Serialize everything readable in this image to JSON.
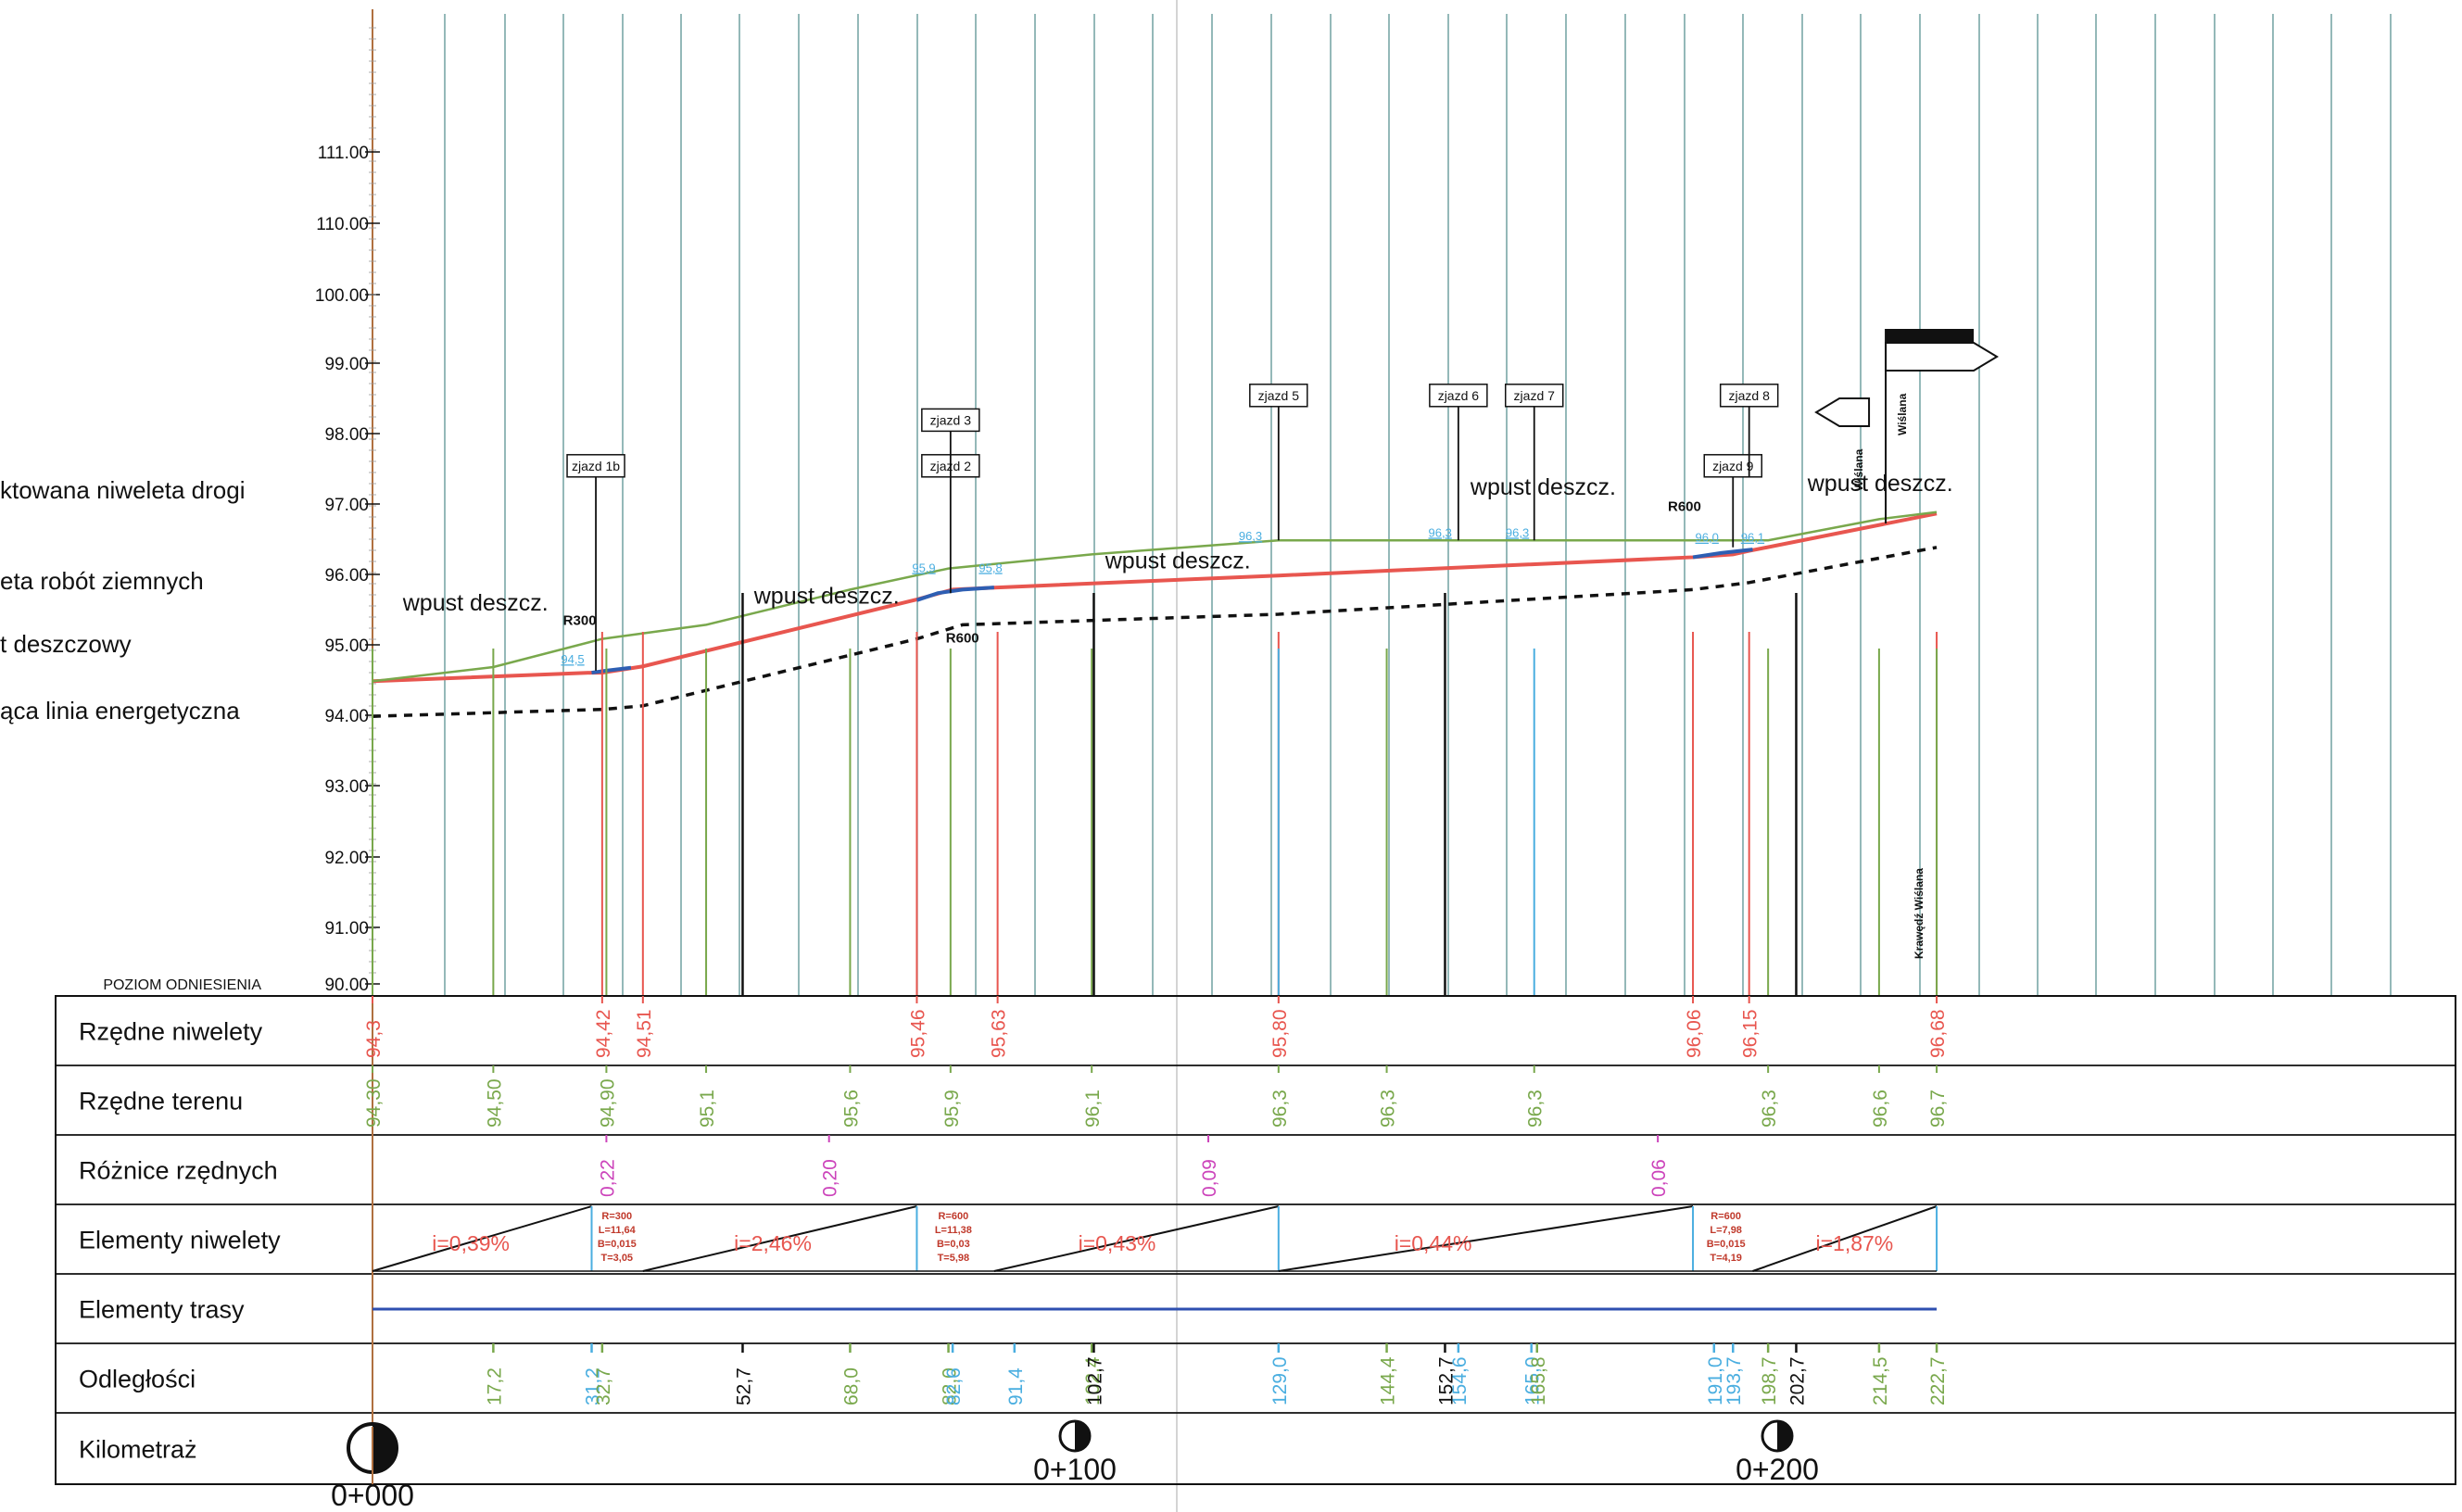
{
  "legend": [
    {
      "text": "ktowana niweleta drogi",
      "y": 530
    },
    {
      "text": "eta robót ziemnych",
      "y": 628
    },
    {
      "text": "t deszczowy",
      "y": 696
    },
    {
      "text": "ąca linia energetyczna",
      "y": 768
    }
  ],
  "reference_level": "POZIOM  ODNIESIENIA",
  "row_labels": [
    "Rzędne niwelety",
    "Rzędne terenu",
    "Różnice rzędnych",
    "Elementy niwelety",
    "Elementy trasy",
    "Odległości",
    "Kilometraż"
  ],
  "y_axis_ticks": [
    "111.00",
    "110.00",
    "100.00",
    "99.00",
    "98.00",
    "97.00",
    "96.00",
    "95.00",
    "94.00",
    "93.00",
    "92.00",
    "91.00",
    "90.00"
  ],
  "niveleta_values": [
    {
      "km": 0,
      "label": "94,3"
    },
    {
      "km": 32.7,
      "label": "94,42"
    },
    {
      "km": 38.5,
      "label": "94,51"
    },
    {
      "km": 77.5,
      "label": "95,46"
    },
    {
      "km": 89,
      "label": "95,63"
    },
    {
      "km": 129,
      "label": "95,80"
    },
    {
      "km": 188,
      "label": "96,06"
    },
    {
      "km": 196,
      "label": "96,15"
    },
    {
      "km": 222.7,
      "label": "96,68"
    }
  ],
  "teren_values": [
    {
      "km": 0,
      "label": "94,30",
      "color": "green"
    },
    {
      "km": 17.2,
      "label": "94,50",
      "color": "green"
    },
    {
      "km": 33.3,
      "label": "94,90",
      "color": "green"
    },
    {
      "km": 47.5,
      "label": "95,1",
      "color": "green"
    },
    {
      "km": 68,
      "label": "95,6",
      "color": "green"
    },
    {
      "km": 82.3,
      "label": "95,9",
      "color": "green"
    },
    {
      "km": 102.4,
      "label": "96,1",
      "color": "green"
    },
    {
      "km": 129,
      "label": "96,3",
      "color": "blue"
    },
    {
      "km": 144.4,
      "label": "96,3",
      "color": "green"
    },
    {
      "km": 165.4,
      "label": "96,3",
      "color": "blue"
    },
    {
      "km": 198.7,
      "label": "96,3",
      "color": "green"
    },
    {
      "km": 214.5,
      "label": "96,6",
      "color": "green"
    },
    {
      "km": 222.7,
      "label": "96,7",
      "color": "green"
    }
  ],
  "roznice_values": [
    {
      "km": 33.3,
      "label": "0,22"
    },
    {
      "km": 65,
      "label": "0,20"
    },
    {
      "km": 119,
      "label": "0,09"
    },
    {
      "km": 183,
      "label": "0,06"
    }
  ],
  "elementy_niwelety": {
    "slopes": [
      {
        "km": 14,
        "label": "i=0,39%"
      },
      {
        "km": 57,
        "label": "i=2,46%"
      },
      {
        "km": 106,
        "label": "i=0,43%"
      },
      {
        "km": 151,
        "label": "i=0,44%"
      },
      {
        "km": 211,
        "label": "i=1,87%"
      }
    ],
    "curves": [
      {
        "km": 34.8,
        "lines": [
          "R=300",
          "L=11,64",
          "B=0,015",
          "T=3,05"
        ]
      },
      {
        "km": 82.7,
        "lines": [
          "R=600",
          "L=11,38",
          "B=0,03",
          "T=5,98"
        ]
      },
      {
        "km": 192.7,
        "lines": [
          "R=600",
          "L=7,98",
          "B=0,015",
          "T=4,19"
        ]
      }
    ]
  },
  "odleglosci": [
    {
      "km": 17.2,
      "label": "17,2",
      "color": "green"
    },
    {
      "km": 31.2,
      "label": "31,2",
      "color": "blue"
    },
    {
      "km": 32.7,
      "label": "32,7",
      "color": "green"
    },
    {
      "km": 52.7,
      "label": "52,7",
      "color": "black"
    },
    {
      "km": 68.0,
      "label": "68,0",
      "color": "green"
    },
    {
      "km": 82.0,
      "label": "82,0",
      "color": "green"
    },
    {
      "km": 82.6,
      "label": "82,6",
      "color": "blue"
    },
    {
      "km": 91.4,
      "label": "91,4",
      "color": "blue"
    },
    {
      "km": 102.4,
      "label": "102,4",
      "color": "green"
    },
    {
      "km": 102.7,
      "label": "102,7",
      "color": "black"
    },
    {
      "km": 129.0,
      "label": "129,0",
      "color": "blue"
    },
    {
      "km": 144.4,
      "label": "144,4",
      "color": "green"
    },
    {
      "km": 152.7,
      "label": "152,7",
      "color": "black"
    },
    {
      "km": 154.6,
      "label": "154,6",
      "color": "blue"
    },
    {
      "km": 165.0,
      "label": "165,0",
      "color": "blue"
    },
    {
      "km": 165.8,
      "label": "165,8",
      "color": "green"
    },
    {
      "km": 191.0,
      "label": "191,0",
      "color": "blue"
    },
    {
      "km": 193.7,
      "label": "193,7",
      "color": "blue"
    },
    {
      "km": 198.7,
      "label": "198,7",
      "color": "green"
    },
    {
      "km": 202.7,
      "label": "202,7",
      "color": "black"
    },
    {
      "km": 214.5,
      "label": "214,5",
      "color": "green"
    },
    {
      "km": 222.7,
      "label": "222,7",
      "color": "green"
    }
  ],
  "kilometraz": [
    {
      "km": 0,
      "label": "0+000"
    },
    {
      "km": 100,
      "label": "0+100"
    },
    {
      "km": 200,
      "label": "0+200"
    }
  ],
  "annotations": {
    "wpust": [
      {
        "km": 3,
        "elev": 95.3,
        "text": "wpust  deszcz."
      },
      {
        "km": 53,
        "elev": 95.4,
        "text": "wpust  deszcz."
      },
      {
        "km": 103,
        "elev": 95.9,
        "text": "wpust  deszcz."
      },
      {
        "km": 155,
        "elev": 96.95,
        "text": "wpust  deszcz."
      },
      {
        "km": 203,
        "elev": 97.0,
        "text": "wpust  deszcz."
      }
    ],
    "zjazdy": [
      {
        "km": 31.8,
        "text": "zjazd 1b",
        "box_elev": 97.2,
        "line_to": 94.45
      },
      {
        "km": 82.3,
        "text": "zjazd 2",
        "box_elev": 97.2,
        "line_to": 95.55
      },
      {
        "km": 82.3,
        "text": "zjazd 3",
        "box_elev": 97.85,
        "line_to": 97.2
      },
      {
        "km": 129,
        "text": "zjazd 5",
        "box_elev": 98.2,
        "line_to": 96.3
      },
      {
        "km": 154.6,
        "text": "zjazd 6",
        "box_elev": 98.2,
        "line_to": 96.3
      },
      {
        "km": 165.4,
        "text": "zjazd 7",
        "box_elev": 98.2,
        "line_to": 96.3
      },
      {
        "km": 193.7,
        "text": "zjazd 9",
        "box_elev": 97.2,
        "line_to": 96.2
      },
      {
        "km": 196,
        "text": "zjazd 8",
        "box_elev": 98.2,
        "line_to": 97.2
      }
    ],
    "radii": [
      {
        "km": 29.5,
        "elev": 95.1,
        "text": "R300"
      },
      {
        "km": 84,
        "elev": 94.85,
        "text": "R600"
      },
      {
        "km": 186.8,
        "elev": 96.72,
        "text": "R600"
      }
    ],
    "level_tags": [
      {
        "km": 28.5,
        "elev": 94.55,
        "text": "94,5"
      },
      {
        "km": 78.5,
        "elev": 95.85,
        "text": "95,9"
      },
      {
        "km": 88,
        "elev": 95.85,
        "text": "95,8"
      },
      {
        "km": 125,
        "elev": 96.3,
        "text": "96,3"
      },
      {
        "km": 152,
        "elev": 96.35,
        "text": "96,3"
      },
      {
        "km": 163,
        "elev": 96.35,
        "text": "96,3"
      },
      {
        "km": 190,
        "elev": 96.28,
        "text": "96,0"
      },
      {
        "km": 196.5,
        "elev": 96.28,
        "text": "96,1"
      }
    ],
    "signs": [
      {
        "text": "Wiślana"
      },
      {
        "text": "Wiślana"
      },
      {
        "text": "Krawędź Wiślana"
      }
    ]
  },
  "chart_data": {
    "type": "line",
    "xlabel": "Odległości",
    "ylabel": "",
    "ylim": [
      90,
      99
    ],
    "series": [
      {
        "name": "niweleta",
        "color": "#e8564f",
        "x": [
          0,
          31.2,
          32.7,
          38.5,
          77.5,
          82.6,
          89,
          129,
          188,
          193.7,
          196,
          222.7
        ],
        "y": [
          94.3,
          94.42,
          94.42,
          94.51,
          95.46,
          95.6,
          95.63,
          95.8,
          96.06,
          96.1,
          96.15,
          96.68
        ]
      },
      {
        "name": "teren",
        "color": "#79a84c",
        "x": [
          0,
          17.2,
          32.7,
          47.5,
          68,
          82,
          102.4,
          129,
          144.4,
          165.8,
          198.7,
          214.5,
          222.7
        ],
        "y": [
          94.3,
          94.5,
          94.9,
          95.1,
          95.6,
          95.9,
          96.1,
          96.3,
          96.3,
          96.3,
          96.3,
          96.6,
          96.7
        ]
      },
      {
        "name": "wpust",
        "color": "#111111",
        "x": [
          0,
          33,
          38.5,
          77.5,
          84,
          129,
          188,
          196,
          222.7
        ],
        "y": [
          93.8,
          93.9,
          93.95,
          94.9,
          95.1,
          95.25,
          95.6,
          95.7,
          96.2
        ]
      },
      {
        "name": "blue-curve",
        "color": "#2e5fb3",
        "x": [
          31.2,
          33.3,
          36.8
        ],
        "y": [
          94.42,
          94.45,
          94.49
        ]
      },
      {
        "name": "blue-curve-2",
        "color": "#2e5fb3",
        "x": [
          77.5,
          80.5,
          84,
          88.5
        ],
        "y": [
          95.45,
          95.55,
          95.6,
          95.63
        ]
      },
      {
        "name": "blue-curve-3",
        "color": "#2e5fb3",
        "x": [
          188,
          192,
          196.5
        ],
        "y": [
          96.06,
          96.12,
          96.17
        ]
      }
    ]
  },
  "colors": {
    "red": "#e8564f",
    "green": "#79a84c",
    "blue": "#4aaee0",
    "black": "#111111",
    "magenta": "#cc44bb",
    "grid": "#4e8a8a",
    "navy": "#2e4fb0"
  }
}
